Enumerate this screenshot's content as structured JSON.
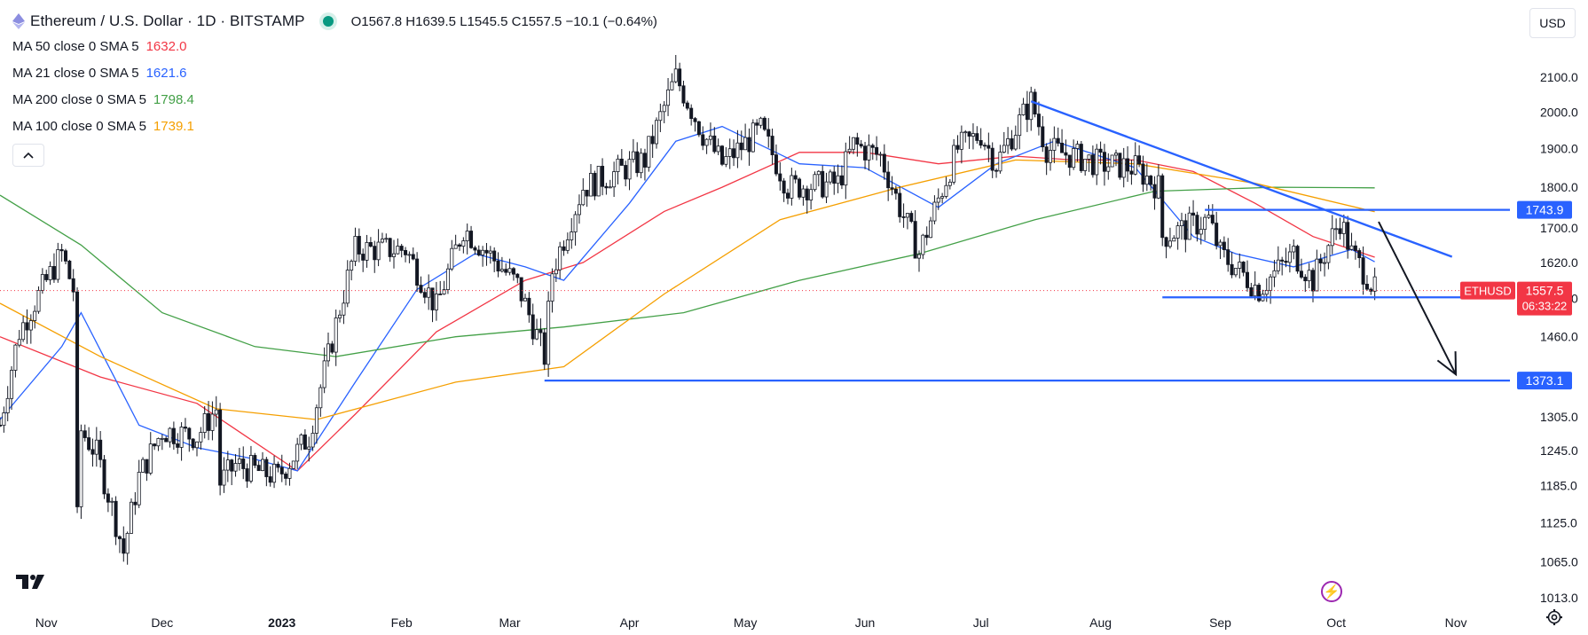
{
  "header": {
    "symbol_title": "Ethereum / U.S. Dollar · 1D · BITSTAMP",
    "ohlc": {
      "o_label": "O",
      "o": "1567.8",
      "h_label": "H",
      "h": "1639.5",
      "l_label": "L",
      "l": "1545.5",
      "c_label": "C",
      "c": "1557.5",
      "change": "−10.1 (−0.64%)"
    },
    "currency": "USD",
    "collapse_icon": "chevron-up-icon",
    "status_color": "#089981"
  },
  "moving_averages": [
    {
      "label": "MA 50 close 0 SMA 5",
      "value": "1632.0",
      "color": "#f23645"
    },
    {
      "label": "MA 21 close 0 SMA 5",
      "value": "1621.6",
      "color": "#2962ff"
    },
    {
      "label": "MA 200 close 0 SMA 5",
      "value": "1798.4",
      "color": "#43a047"
    },
    {
      "label": "MA 100 close 0 SMA 5",
      "value": "1739.1",
      "color": "#f59f00"
    }
  ],
  "chart_data": {
    "type": "candlestick",
    "y_axis_ticks": [
      "2100.0",
      "2000.0",
      "1900.0",
      "1800.0",
      "1700.0",
      "1620.0",
      "1540.0",
      "1460.0",
      "1373.1",
      "1305.0",
      "1245.0",
      "1185.0",
      "1125.0",
      "1065.0",
      "1013.0"
    ],
    "x_axis_ticks": [
      "Nov",
      "Dec",
      "2023",
      "Feb",
      "Mar",
      "Apr",
      "May",
      "Jun",
      "Jul",
      "Aug",
      "Sep",
      "Oct",
      "Nov"
    ],
    "x_range": [
      "2022-10-20",
      "2023-11-15"
    ],
    "y_log_scale": true,
    "last_price": {
      "label": "ETHUSD",
      "value": "1557.5",
      "countdown": "06:33:22",
      "color": "#f23645"
    },
    "price_levels": [
      {
        "value": 1743.9,
        "label": "1743.9",
        "from": "2023-08-28",
        "to": "2023-11-15"
      },
      {
        "value": 1542.9,
        "label": "1542.9",
        "from": "2023-08-17",
        "to": "2023-11-15"
      },
      {
        "value": 1373.1,
        "label": "1373.1",
        "from": "2023-03-10",
        "to": "2023-11-15"
      }
    ],
    "trendline": {
      "from": {
        "x": "2023-07-14",
        "y": 2030
      },
      "to": {
        "x": "2023-10-31",
        "y": 1633
      }
    },
    "forecast_arrow": {
      "from": {
        "x": "2023-10-12",
        "y": 1715
      },
      "to": {
        "x": "2023-11-01",
        "y": 1385
      }
    },
    "candle_path": [
      [
        "2022-10-20",
        1290
      ],
      [
        "2022-10-25",
        1470
      ],
      [
        "2022-11-05",
        1640
      ],
      [
        "2022-11-08",
        1560
      ],
      [
        "2022-11-09",
        1130
      ],
      [
        "2022-11-10",
        1280
      ],
      [
        "2022-11-14",
        1240
      ],
      [
        "2022-11-21",
        1080
      ],
      [
        "2022-11-25",
        1200
      ],
      [
        "2022-12-01",
        1280
      ],
      [
        "2022-12-10",
        1270
      ],
      [
        "2022-12-15",
        1320
      ],
      [
        "2022-12-16",
        1190
      ],
      [
        "2022-12-20",
        1220
      ],
      [
        "2022-12-31",
        1200
      ],
      [
        "2023-01-08",
        1270
      ],
      [
        "2023-01-13",
        1420
      ],
      [
        "2023-01-20",
        1650
      ],
      [
        "2023-02-02",
        1650
      ],
      [
        "2023-02-10",
        1520
      ],
      [
        "2023-02-17",
        1700
      ],
      [
        "2023-03-03",
        1570
      ],
      [
        "2023-03-10",
        1420
      ],
      [
        "2023-03-12",
        1600
      ],
      [
        "2023-03-20",
        1800
      ],
      [
        "2023-04-05",
        1870
      ],
      [
        "2023-04-13",
        2100
      ],
      [
        "2023-04-20",
        1940
      ],
      [
        "2023-04-25",
        1860
      ],
      [
        "2023-05-05",
        1950
      ],
      [
        "2023-05-12",
        1800
      ],
      [
        "2023-05-25",
        1810
      ],
      [
        "2023-05-29",
        1910
      ],
      [
        "2023-06-05",
        1880
      ],
      [
        "2023-06-10",
        1750
      ],
      [
        "2023-06-15",
        1640
      ],
      [
        "2023-06-25",
        1900
      ],
      [
        "2023-07-01",
        1940
      ],
      [
        "2023-07-05",
        1860
      ],
      [
        "2023-07-14",
        2030
      ],
      [
        "2023-07-18",
        1900
      ],
      [
        "2023-08-01",
        1860
      ],
      [
        "2023-08-10",
        1850
      ],
      [
        "2023-08-16",
        1800
      ],
      [
        "2023-08-17",
        1680
      ],
      [
        "2023-08-29",
        1720
      ],
      [
        "2023-09-01",
        1640
      ],
      [
        "2023-09-11",
        1560
      ],
      [
        "2023-09-20",
        1640
      ],
      [
        "2023-09-25",
        1580
      ],
      [
        "2023-10-02",
        1720
      ],
      [
        "2023-10-05",
        1640
      ],
      [
        "2023-10-09",
        1590
      ],
      [
        "2023-10-11",
        1557.5
      ]
    ],
    "ma_paths": {
      "MA 50 close 0 SMA 5": [
        [
          "2022-10-20",
          1460
        ],
        [
          "2022-11-15",
          1380
        ],
        [
          "2022-12-10",
          1330
        ],
        [
          "2023-01-05",
          1210
        ],
        [
          "2023-01-20",
          1310
        ],
        [
          "2023-02-10",
          1470
        ],
        [
          "2023-03-05",
          1580
        ],
        [
          "2023-03-20",
          1620
        ],
        [
          "2023-04-10",
          1740
        ],
        [
          "2023-04-25",
          1800
        ],
        [
          "2023-05-15",
          1890
        ],
        [
          "2023-06-01",
          1890
        ],
        [
          "2023-06-20",
          1860
        ],
        [
          "2023-07-10",
          1880
        ],
        [
          "2023-07-25",
          1870
        ],
        [
          "2023-08-10",
          1870
        ],
        [
          "2023-08-25",
          1840
        ],
        [
          "2023-09-10",
          1760
        ],
        [
          "2023-09-25",
          1680
        ],
        [
          "2023-10-11",
          1632
        ]
      ],
      "MA 21 close 0 SMA 5": [
        [
          "2022-10-20",
          1300
        ],
        [
          "2022-11-05",
          1440
        ],
        [
          "2022-11-10",
          1510
        ],
        [
          "2022-11-25",
          1290
        ],
        [
          "2022-12-10",
          1250
        ],
        [
          "2022-12-25",
          1230
        ],
        [
          "2023-01-05",
          1210
        ],
        [
          "2023-01-20",
          1370
        ],
        [
          "2023-02-05",
          1560
        ],
        [
          "2023-02-20",
          1640
        ],
        [
          "2023-03-05",
          1610
        ],
        [
          "2023-03-15",
          1580
        ],
        [
          "2023-04-01",
          1760
        ],
        [
          "2023-04-13",
          1920
        ],
        [
          "2023-04-25",
          1960
        ],
        [
          "2023-05-15",
          1860
        ],
        [
          "2023-06-01",
          1850
        ],
        [
          "2023-06-20",
          1750
        ],
        [
          "2023-07-05",
          1860
        ],
        [
          "2023-07-20",
          1920
        ],
        [
          "2023-08-10",
          1850
        ],
        [
          "2023-08-25",
          1680
        ],
        [
          "2023-09-05",
          1640
        ],
        [
          "2023-09-20",
          1610
        ],
        [
          "2023-10-05",
          1650
        ],
        [
          "2023-10-11",
          1621.6
        ]
      ],
      "MA 200 close 0 SMA 5": [
        [
          "2022-10-20",
          1780
        ],
        [
          "2022-11-10",
          1660
        ],
        [
          "2022-12-01",
          1510
        ],
        [
          "2022-12-25",
          1440
        ],
        [
          "2023-01-15",
          1420
        ],
        [
          "2023-02-15",
          1460
        ],
        [
          "2023-03-15",
          1480
        ],
        [
          "2023-04-15",
          1510
        ],
        [
          "2023-05-15",
          1580
        ],
        [
          "2023-06-15",
          1640
        ],
        [
          "2023-07-15",
          1720
        ],
        [
          "2023-08-15",
          1790
        ],
        [
          "2023-09-15",
          1800
        ],
        [
          "2023-10-11",
          1798.4
        ]
      ],
      "MA 100 close 0 SMA 5": [
        [
          "2022-10-20",
          1530
        ],
        [
          "2022-11-15",
          1420
        ],
        [
          "2022-12-15",
          1320
        ],
        [
          "2023-01-10",
          1300
        ],
        [
          "2023-02-15",
          1370
        ],
        [
          "2023-03-15",
          1400
        ],
        [
          "2023-04-10",
          1550
        ],
        [
          "2023-05-10",
          1720
        ],
        [
          "2023-06-10",
          1800
        ],
        [
          "2023-07-10",
          1870
        ],
        [
          "2023-08-10",
          1860
        ],
        [
          "2023-09-10",
          1810
        ],
        [
          "2023-10-11",
          1739.1
        ]
      ]
    }
  },
  "footer": {
    "logo_icon": "tradingview-logo-icon",
    "lightning_icon": "lightning-icon",
    "settings_icon": "gear-icon"
  }
}
